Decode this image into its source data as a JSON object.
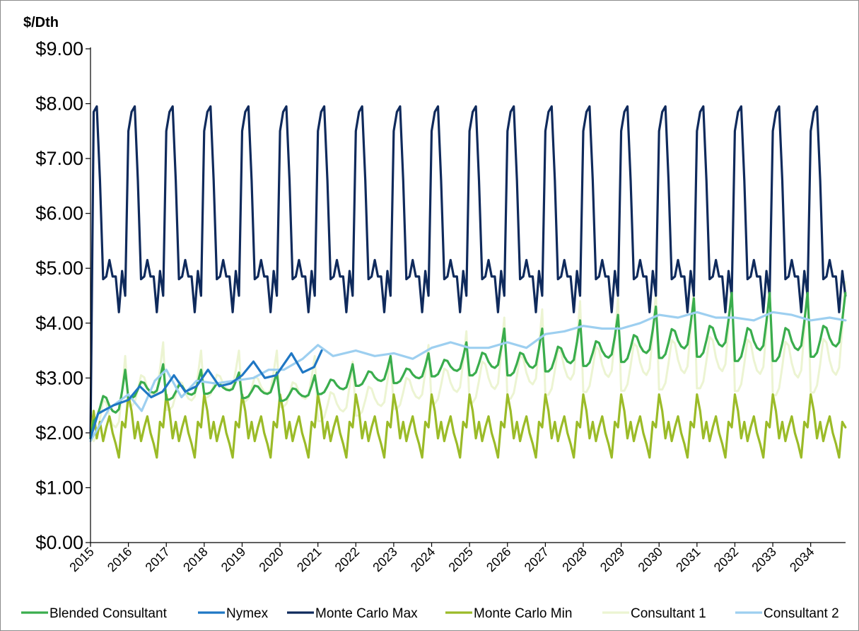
{
  "chart_data": {
    "type": "line",
    "ylabel": "$/Dth",
    "ylim": [
      0,
      9
    ],
    "yticks": [
      "$0.00",
      "$1.00",
      "$2.00",
      "$3.00",
      "$4.00",
      "$5.00",
      "$6.00",
      "$7.00",
      "$8.00",
      "$9.00"
    ],
    "categories": [
      "2015",
      "2016",
      "2017",
      "2018",
      "2019",
      "2020",
      "2021",
      "2022",
      "2023",
      "2024",
      "2025",
      "2026",
      "2027",
      "2028",
      "2029",
      "2030",
      "2031",
      "2032",
      "2033",
      "2034"
    ],
    "x_range": [
      2015.0,
      2034.92
    ],
    "grid": false,
    "legend_position": "bottom",
    "series": [
      {
        "name": "Consultant 1",
        "color": "#ecf4d2",
        "base": [
          2.4,
          2.9,
          2.8,
          2.95,
          2.9,
          2.8,
          2.6,
          2.7,
          2.85,
          3.0,
          3.1,
          3.2,
          3.3,
          3.35,
          3.4,
          3.45,
          3.5,
          3.45,
          3.4,
          3.45
        ],
        "amp": [
          1.0,
          0.75,
          0.7,
          0.55,
          0.6,
          0.6,
          0.7,
          0.7,
          0.75,
          0.85,
          1.0,
          1.05,
          1.1,
          1.1,
          1.15,
          1.2,
          1.25,
          1.25,
          1.3,
          1.3
        ]
      },
      {
        "name": "Monte Carlo Max",
        "color": "#0f2a5c",
        "profile": [
          7.5,
          7.85,
          7.95,
          6.6,
          4.8,
          4.85,
          5.15,
          4.85,
          4.85,
          4.2,
          4.95,
          4.5
        ]
      },
      {
        "name": "Monte Carlo Min",
        "color": "#9bbb28",
        "profile": [
          2.7,
          2.4,
          1.9,
          2.2,
          1.85,
          2.1,
          2.3,
          2.0,
          1.8,
          1.55,
          2.2,
          2.1
        ]
      },
      {
        "name": "Blended Consultant",
        "color": "#3aad4d",
        "base": [
          2.55,
          2.85,
          2.8,
          2.85,
          2.8,
          2.75,
          2.9,
          3.05,
          3.1,
          3.25,
          3.35,
          3.35,
          3.45,
          3.55,
          3.65,
          3.75,
          3.8,
          3.75,
          3.75,
          3.8
        ],
        "amp": [
          0.6,
          0.4,
          0.35,
          0.25,
          0.3,
          0.3,
          0.35,
          0.35,
          0.35,
          0.4,
          0.55,
          0.55,
          0.6,
          0.6,
          0.65,
          0.7,
          0.75,
          0.8,
          0.8,
          0.75
        ]
      },
      {
        "name": "Consultant 2",
        "color": "#9dcff0",
        "points": [
          [
            2015.0,
            1.85
          ],
          [
            2015.5,
            2.45
          ],
          [
            2016.0,
            2.7
          ],
          [
            2016.35,
            2.4
          ],
          [
            2016.7,
            2.95
          ],
          [
            2017.0,
            3.15
          ],
          [
            2017.4,
            2.65
          ],
          [
            2017.8,
            2.95
          ],
          [
            2018.3,
            2.9
          ],
          [
            2018.8,
            2.95
          ],
          [
            2019.3,
            3.0
          ],
          [
            2019.7,
            3.15
          ],
          [
            2020.1,
            3.15
          ],
          [
            2020.6,
            3.35
          ],
          [
            2021.0,
            3.6
          ],
          [
            2021.4,
            3.4
          ],
          [
            2022.0,
            3.5
          ],
          [
            2022.5,
            3.4
          ],
          [
            2023.0,
            3.45
          ],
          [
            2023.5,
            3.35
          ],
          [
            2024.0,
            3.55
          ],
          [
            2024.5,
            3.65
          ],
          [
            2025.0,
            3.55
          ],
          [
            2025.5,
            3.55
          ],
          [
            2026.0,
            3.65
          ],
          [
            2026.5,
            3.55
          ],
          [
            2027.0,
            3.8
          ],
          [
            2027.5,
            3.85
          ],
          [
            2028.0,
            3.95
          ],
          [
            2028.5,
            3.9
          ],
          [
            2029.0,
            3.9
          ],
          [
            2029.5,
            4.0
          ],
          [
            2030.0,
            4.15
          ],
          [
            2030.5,
            4.1
          ],
          [
            2031.0,
            4.2
          ],
          [
            2031.5,
            4.1
          ],
          [
            2032.0,
            4.1
          ],
          [
            2032.5,
            4.05
          ],
          [
            2033.0,
            4.2
          ],
          [
            2033.5,
            4.15
          ],
          [
            2034.0,
            4.05
          ],
          [
            2034.5,
            4.1
          ],
          [
            2034.92,
            4.05
          ]
        ]
      },
      {
        "name": "Nymex",
        "color": "#1f77c4",
        "points": [
          [
            2015.0,
            1.9
          ],
          [
            2015.2,
            2.35
          ],
          [
            2015.6,
            2.5
          ],
          [
            2016.0,
            2.6
          ],
          [
            2016.3,
            2.85
          ],
          [
            2016.6,
            2.65
          ],
          [
            2016.9,
            2.75
          ],
          [
            2017.2,
            3.05
          ],
          [
            2017.5,
            2.75
          ],
          [
            2017.8,
            2.85
          ],
          [
            2018.1,
            3.15
          ],
          [
            2018.4,
            2.85
          ],
          [
            2018.7,
            2.9
          ],
          [
            2019.0,
            3.05
          ],
          [
            2019.3,
            3.3
          ],
          [
            2019.6,
            3.0
          ],
          [
            2019.9,
            3.05
          ],
          [
            2020.3,
            3.45
          ],
          [
            2020.6,
            3.1
          ],
          [
            2020.9,
            3.2
          ],
          [
            2021.1,
            3.5
          ]
        ]
      }
    ],
    "legend_order": [
      "Blended Consultant",
      "Nymex",
      "Monte Carlo Max",
      "Monte Carlo Min",
      "Consultant 1",
      "Consultant 2"
    ]
  }
}
